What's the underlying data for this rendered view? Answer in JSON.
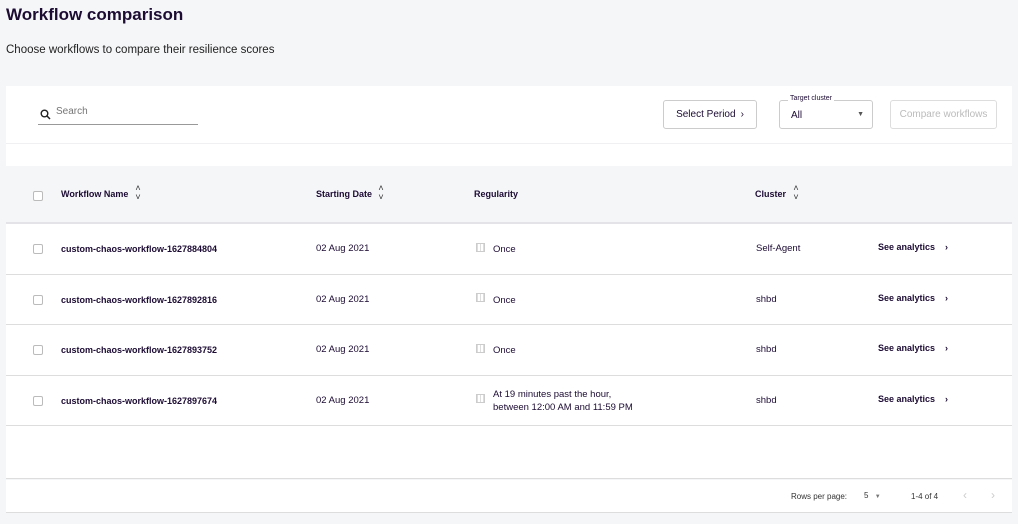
{
  "page": {
    "title": "Workflow comparison",
    "subtitle": "Choose workflows to compare their resilience scores"
  },
  "toolbar": {
    "search_placeholder": "Search",
    "select_period": "Select Period",
    "target_cluster_label": "Target cluster",
    "target_cluster_value": "All",
    "compare_label": "Compare workflows"
  },
  "table": {
    "columns": [
      "Workflow Name",
      "Starting Date",
      "Regularity",
      "Cluster"
    ],
    "rows": [
      {
        "name": "custom-chaos-workflow-1627884804",
        "date": "02 Aug 2021",
        "regularity": "Once",
        "regularity2": "",
        "cluster": "Self-Agent",
        "action": "See analytics"
      },
      {
        "name": "custom-chaos-workflow-1627892816",
        "date": "02 Aug 2021",
        "regularity": "Once",
        "regularity2": "",
        "cluster": "shbd",
        "action": "See analytics"
      },
      {
        "name": "custom-chaos-workflow-1627893752",
        "date": "02 Aug 2021",
        "regularity": "Once",
        "regularity2": "",
        "cluster": "shbd",
        "action": "See analytics"
      },
      {
        "name": "custom-chaos-workflow-1627897674",
        "date": "02 Aug 2021",
        "regularity": "At 19 minutes past the hour,",
        "regularity2": "between 12:00 AM and 11:59 PM",
        "cluster": "shbd",
        "action": "See analytics"
      }
    ]
  },
  "pagination": {
    "rows_per_page_label": "Rows per page:",
    "rows_per_page": "5",
    "range": "1-4 of 4"
  }
}
